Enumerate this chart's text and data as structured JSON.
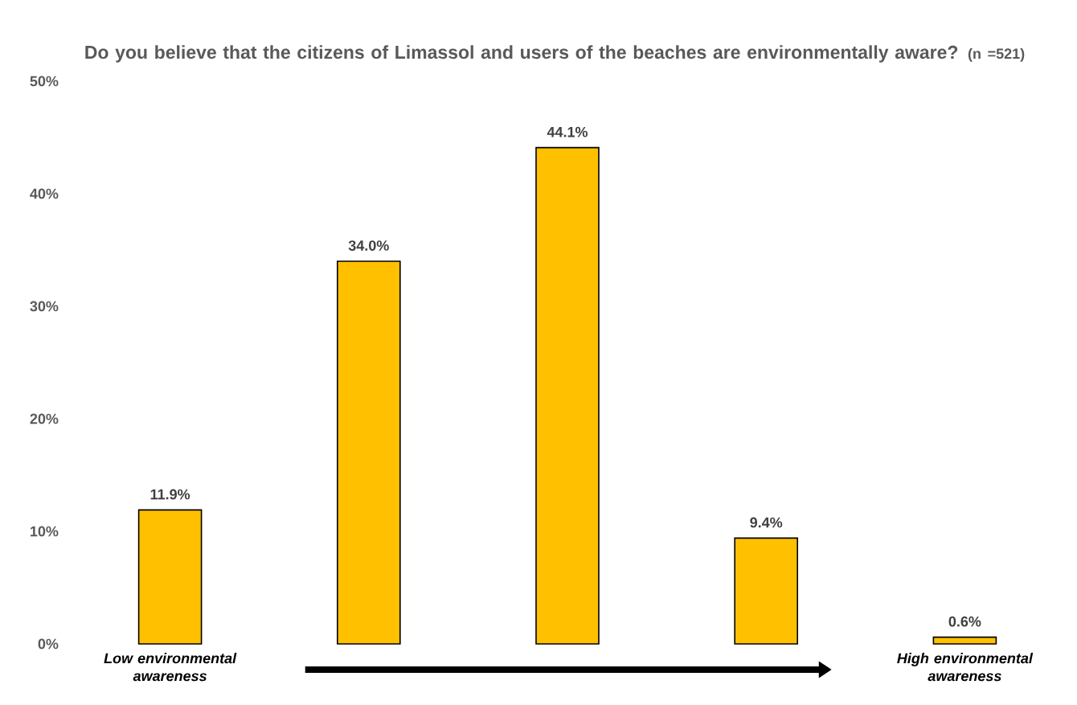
{
  "chart_data": {
    "type": "bar",
    "title": "Do you believe that the citizens of Limassol and users of the beaches are environmentally aware?",
    "subtitle": "(n =521)",
    "categories": [
      "Low environmental awareness",
      null,
      null,
      null,
      "High environmental awareness"
    ],
    "values": [
      11.9,
      34.0,
      44.1,
      9.4,
      0.6
    ],
    "value_labels": [
      "11.9%",
      "34.0%",
      "44.1%",
      "9.4%",
      "0.6%"
    ],
    "color": "#ffc000",
    "ylim": [
      0,
      50
    ],
    "yticks": [
      {
        "value": 0,
        "label": "0%"
      },
      {
        "value": 10,
        "label": "10%"
      },
      {
        "value": 20,
        "label": "20%"
      },
      {
        "value": 30,
        "label": "30%"
      },
      {
        "value": 40,
        "label": "40%"
      },
      {
        "value": 50,
        "label": "50%"
      }
    ]
  }
}
